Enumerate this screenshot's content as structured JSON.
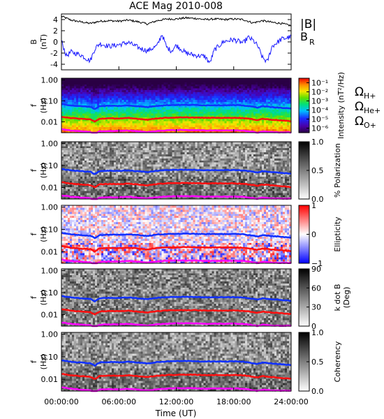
{
  "title": "ACE Mag 2010-008",
  "colors": {
    "btotal": "#000000",
    "br": "#1a1aff",
    "proton": "#1030ff",
    "helium": "#ff1010",
    "oxygen": "#ff00ff",
    "axis": "#000000"
  },
  "chart_data": [
    {
      "type": "line",
      "panel": "B",
      "ylabel_top": "B",
      "ylabel_unit": "(nT)",
      "ylim": [
        -5,
        5
      ],
      "yticks": [
        "4",
        "2",
        "0",
        "-2",
        "-4"
      ],
      "ytick_values": [
        4,
        2,
        0,
        -2,
        -4
      ],
      "xlim": [
        0,
        24
      ],
      "series": [
        {
          "name": "|B|",
          "x": [
            0,
            1,
            2,
            3,
            4,
            5,
            6,
            7,
            8,
            9,
            10,
            11,
            12,
            13,
            14,
            15,
            16,
            17,
            18,
            19,
            20,
            21,
            22,
            23,
            24
          ],
          "values": [
            4.6,
            3.9,
            3.6,
            3.3,
            3.7,
            3.8,
            3.7,
            3.9,
            3.6,
            3.2,
            3.8,
            4.1,
            4.1,
            4.3,
            4.2,
            4.0,
            4.1,
            4.0,
            4.1,
            4.0,
            3.4,
            3.8,
            3.5,
            3.3,
            2.9
          ]
        },
        {
          "name": "B",
          "subscript": "R",
          "x": [
            0,
            0.5,
            1,
            2,
            3,
            3.5,
            4,
            5,
            6,
            7,
            8,
            9,
            10,
            10.5,
            11,
            11.5,
            12,
            13,
            14,
            15,
            15.5,
            16,
            17,
            18,
            19,
            19.5,
            20,
            20.5,
            21,
            21.5,
            22,
            23,
            24
          ],
          "values": [
            0.2,
            -2.5,
            -1.8,
            -2.3,
            -3.4,
            -1.2,
            -0.3,
            -0.8,
            -0.5,
            -0.1,
            -1.0,
            -1.6,
            -0.7,
            1.4,
            -1.0,
            -1.6,
            -0.6,
            -2.0,
            -2.4,
            -2.6,
            -3.8,
            -1.4,
            0.1,
            0.4,
            -0.2,
            0.8,
            0.3,
            -0.7,
            -2.8,
            -3.6,
            -0.8,
            0.5,
            0.9
          ]
        }
      ]
    },
    {
      "type": "heatmap",
      "panel": "spectrogram",
      "ylabel_top": "f",
      "ylabel_unit": "(Hz)",
      "yscale": "log",
      "ylim": [
        0.003,
        1.2
      ],
      "yticks": [
        "1.00",
        "0.10",
        "0.01"
      ],
      "ytick_values": [
        1,
        0.1,
        0.01
      ],
      "colorbar_label": "Intensity (nT²/Hz)",
      "colorbar_ticks": [
        "10⁻¹",
        "10⁻²",
        "10⁻³",
        "10⁻⁴",
        "10⁻⁵",
        "10⁻⁶"
      ],
      "colorbar_tick_values": [
        -1,
        -2,
        -3,
        -4,
        -5,
        -6
      ],
      "colorbar_range": [
        -6.5,
        -0.5
      ],
      "colorscale": "rainbow",
      "legend": [
        {
          "symbol": "Ω",
          "sub": "H+",
          "color": "#1030ff"
        },
        {
          "symbol": "Ω",
          "sub": "He+",
          "color": "#ff1010"
        },
        {
          "symbol": "Ω",
          "sub": "O+",
          "color": "#ff00ff"
        }
      ]
    },
    {
      "type": "heatmap",
      "panel": "polarization",
      "ylabel_top": "f",
      "ylabel_unit": "(Hz)",
      "yscale": "log",
      "ylim": [
        0.003,
        1.2
      ],
      "yticks": [
        "1.00",
        "0.10",
        "0.01"
      ],
      "ytick_values": [
        1,
        0.1,
        0.01
      ],
      "colorbar_label": "% Polarization",
      "colorbar_ticks": [
        "1.0",
        "0.5",
        "0.0"
      ],
      "colorbar_tick_values": [
        1,
        0.5,
        0
      ],
      "colorbar_range": [
        0,
        1
      ],
      "colorscale": "gray"
    },
    {
      "type": "heatmap",
      "panel": "ellipticity",
      "ylabel_top": "f",
      "ylabel_unit": "(Hz)",
      "yscale": "log",
      "ylim": [
        0.003,
        1.2
      ],
      "yticks": [
        "1.00",
        "0.10",
        "0.01"
      ],
      "ytick_values": [
        1,
        0.1,
        0.01
      ],
      "colorbar_label": "Ellipticity",
      "colorbar_ticks": [
        "1",
        "0",
        "−1"
      ],
      "colorbar_tick_values": [
        1,
        0,
        -1
      ],
      "colorbar_range": [
        -1,
        1
      ],
      "colorscale": "bluewhitered"
    },
    {
      "type": "heatmap",
      "panel": "kdotb",
      "ylabel_top": "f",
      "ylabel_unit": "(Hz)",
      "yscale": "log",
      "ylim": [
        0.003,
        1.2
      ],
      "yticks": [
        "1.00",
        "0.10",
        "0.01"
      ],
      "ytick_values": [
        1,
        0.1,
        0.01
      ],
      "colorbar_label_lines": [
        "k dot B",
        "(Deg)"
      ],
      "colorbar_ticks": [
        "90",
        "60",
        "30",
        "0"
      ],
      "colorbar_tick_values": [
        90,
        60,
        30,
        0
      ],
      "colorbar_range": [
        0,
        90
      ],
      "colorscale": "gray"
    },
    {
      "type": "heatmap",
      "panel": "coherency",
      "ylabel_top": "f",
      "ylabel_unit": "(Hz)",
      "yscale": "log",
      "ylim": [
        0.003,
        1.2
      ],
      "yticks": [
        "1.00",
        "0.10",
        "0.01"
      ],
      "ytick_values": [
        1,
        0.1,
        0.01
      ],
      "colorbar_label": "Coherency",
      "colorbar_ticks": [
        "1.0",
        "0.5",
        "0.0"
      ],
      "colorbar_tick_values": [
        1,
        0.5,
        0
      ],
      "colorbar_range": [
        0,
        1
      ],
      "colorscale": "gray"
    }
  ],
  "gyrofrequency_lines": {
    "x": [
      0,
      1,
      2,
      3,
      3.5,
      4,
      5,
      6,
      7,
      8,
      9,
      10,
      11,
      12,
      13,
      14,
      15,
      16,
      17,
      18,
      19,
      20,
      20.5,
      21,
      22,
      23,
      24
    ],
    "proton": [
      0.07,
      0.06,
      0.055,
      0.052,
      0.04,
      0.056,
      0.058,
      0.057,
      0.06,
      0.055,
      0.05,
      0.058,
      0.062,
      0.063,
      0.064,
      0.063,
      0.061,
      0.062,
      0.061,
      0.062,
      0.06,
      0.052,
      0.048,
      0.055,
      0.05,
      0.046,
      0.042
    ],
    "helium": [
      0.0175,
      0.015,
      0.0138,
      0.013,
      0.01,
      0.014,
      0.0145,
      0.0143,
      0.015,
      0.0138,
      0.0125,
      0.0145,
      0.0155,
      0.0158,
      0.016,
      0.0158,
      0.0153,
      0.0155,
      0.0153,
      0.0155,
      0.015,
      0.013,
      0.012,
      0.0138,
      0.0125,
      0.0115,
      0.0105
    ],
    "oxygen": [
      0.0044,
      0.0038,
      0.0035,
      0.0033,
      0.0025,
      0.0035,
      0.0036,
      0.0036,
      0.0038,
      0.0035,
      0.0032,
      0.0036,
      0.0039,
      0.004,
      0.004,
      0.004,
      0.0038,
      0.0039,
      0.0038,
      0.0039,
      0.0038,
      0.0033,
      0.003,
      0.0035,
      0.0032,
      0.0031,
      0.0031
    ]
  },
  "xaxis": {
    "label": "Time (UT)",
    "ticks": [
      "00:00:00",
      "06:00:00",
      "12:00:00",
      "18:00:00",
      "24:00:00"
    ],
    "tick_values": [
      0,
      6,
      12,
      18,
      24
    ],
    "range": [
      0,
      24
    ]
  }
}
